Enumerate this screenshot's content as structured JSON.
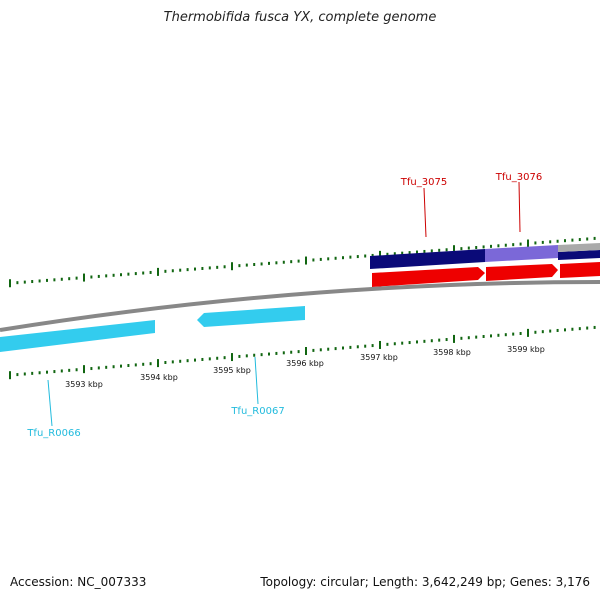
{
  "title": "Thermobifida fusca YX, complete genome",
  "footer": {
    "accession_label": "Accession:",
    "accession": "NC_007333",
    "topology_label": "Topology:",
    "topology": "circular",
    "length_label": "Length:",
    "length": "3,642,249 bp",
    "genes_label": "Genes:",
    "genes": "3,176"
  },
  "ruler": {
    "unit": "kbp",
    "labels": [
      "3593 kbp",
      "3594 kbp",
      "3595 kbp",
      "3596 kbp",
      "3597 kbp",
      "3598 kbp",
      "3599 kbp"
    ]
  },
  "features": {
    "genes": [
      {
        "id": "Tfu_3075",
        "strand": "+",
        "color": "#ee0000"
      },
      {
        "id": "Tfu_3076",
        "strand": "+",
        "color": "#ee0000"
      }
    ],
    "rnas": [
      {
        "id": "Tfu_R0066",
        "strand": "-",
        "color": "#33ccee"
      },
      {
        "id": "Tfu_R0067",
        "strand": "-",
        "color": "#33ccee"
      }
    ]
  },
  "colors": {
    "backbone": "#888888",
    "tick": "#116611",
    "gene_label": "#cc0000",
    "rna_label": "#22bbdd",
    "cds_forward": "#ee0000",
    "rna_reverse": "#33ccee",
    "track_dark": "#0a0a78",
    "track_light": "#7b68d8"
  }
}
